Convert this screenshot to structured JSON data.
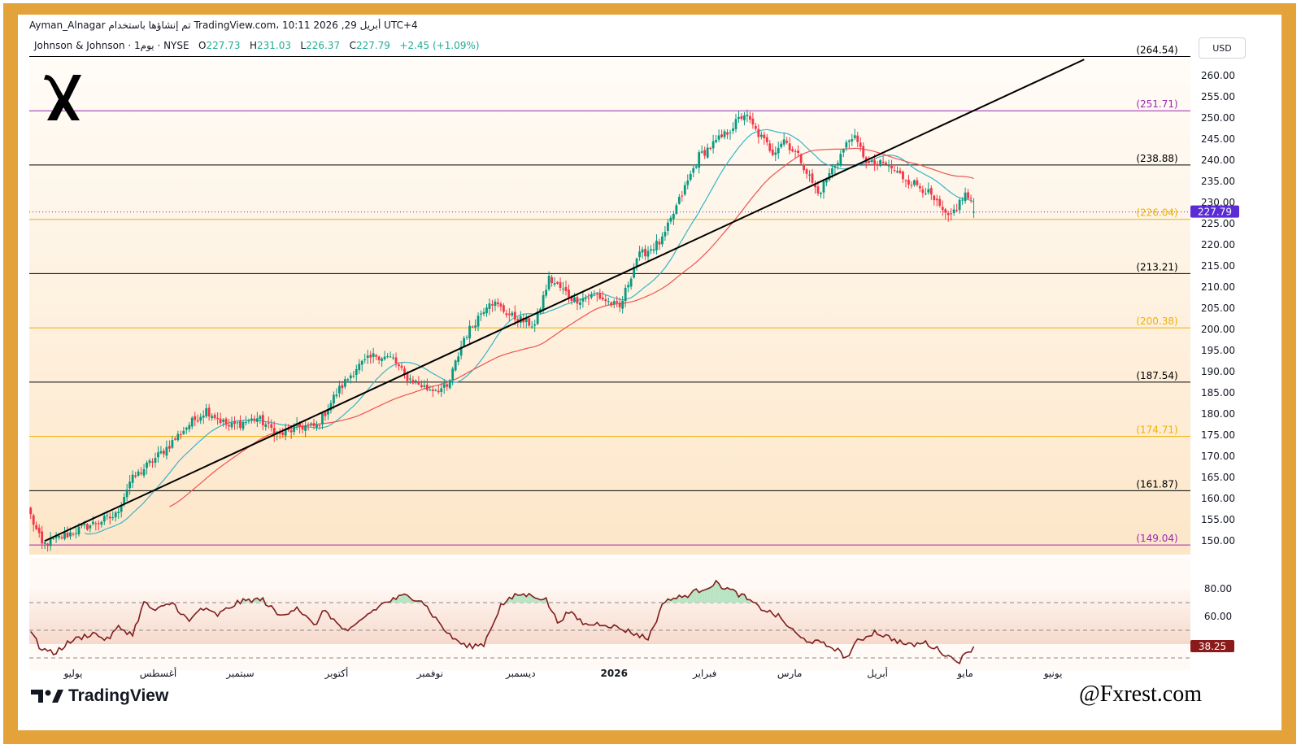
{
  "header": {
    "text": "Ayman_Alnagar تم إنشاؤها باستخدام TradingView.com، 10:11 2026 ,29 أبريل UTC+4"
  },
  "legend": {
    "symbol": "Johnson & Johnson · 1يوم · NYSE",
    "open_label": "O",
    "open": "227.73",
    "high_label": "H",
    "high": "231.03",
    "low_label": "L",
    "low": "226.37",
    "close_label": "C",
    "close": "227.79",
    "change": "+2.45 (+1.09%)"
  },
  "currency": "USD",
  "brand": {
    "name": "TradingView"
  },
  "watermark": "@Fxrest.com",
  "colors": {
    "up": "#089981",
    "down": "#f23645",
    "sma_fast": "#35b6c9",
    "sma_slow": "#ef5350",
    "trendline": "#000000",
    "fib_black": "#000000",
    "fib_orange": "#f0b000",
    "fib_purple": "#9c27b0",
    "rsi_line": "#7e1e1e",
    "last_price_bg": "#5b2bd6",
    "rsi_last_bg": "#8b1a1a"
  },
  "chart_data": {
    "type": "candlestick",
    "price_axis": {
      "ticks": [
        "260.00",
        "255.00",
        "250.00",
        "245.00",
        "240.00",
        "235.00",
        "230.00",
        "225.00",
        "220.00",
        "215.00",
        "210.00",
        "205.00",
        "200.00",
        "195.00",
        "190.00",
        "185.00",
        "180.00",
        "175.00",
        "170.00",
        "165.00",
        "160.00",
        "155.00",
        "150.00"
      ]
    },
    "time_axis": {
      "labels": [
        "يوليو",
        "أغسطس",
        "سبتمبر",
        "أكتوبر",
        "نوفمبر",
        "ديسمبر",
        "2026",
        "فبراير",
        "مارس",
        "أبريل",
        "مايو",
        "يونيو"
      ]
    },
    "fib_levels": [
      {
        "label": "(264.54)",
        "value": 264.54,
        "color": "black"
      },
      {
        "label": "(251.71)",
        "value": 251.71,
        "color": "purple"
      },
      {
        "label": "(238.88)",
        "value": 238.88,
        "color": "black"
      },
      {
        "label": "(226.04)",
        "value": 226.04,
        "color": "orange"
      },
      {
        "label": "(213.21)",
        "value": 213.21,
        "color": "black"
      },
      {
        "label": "(200.38)",
        "value": 200.38,
        "color": "orange"
      },
      {
        "label": "(187.54)",
        "value": 187.54,
        "color": "black"
      },
      {
        "label": "(174.71)",
        "value": 174.71,
        "color": "orange"
      },
      {
        "label": "(161.87)",
        "value": 161.87,
        "color": "black"
      },
      {
        "label": "(149.04)",
        "value": 149.04,
        "color": "purple"
      }
    ],
    "last_price": {
      "label": "227.79",
      "value": 227.79
    },
    "trendline": {
      "from": {
        "bar": 5,
        "price": 150.0
      },
      "to": {
        "bar": 250,
        "price": 226.0
      }
    },
    "waypoints": [
      [
        0,
        156
      ],
      [
        4,
        149
      ],
      [
        18,
        153
      ],
      [
        30,
        156
      ],
      [
        35,
        164
      ],
      [
        48,
        172
      ],
      [
        55,
        177
      ],
      [
        62,
        181
      ],
      [
        70,
        177
      ],
      [
        80,
        179
      ],
      [
        88,
        175
      ],
      [
        95,
        177
      ],
      [
        101,
        177
      ],
      [
        108,
        185
      ],
      [
        115,
        191
      ],
      [
        122,
        194
      ],
      [
        128,
        193
      ],
      [
        132,
        189
      ],
      [
        140,
        186
      ],
      [
        147,
        186
      ],
      [
        153,
        198
      ],
      [
        162,
        207
      ],
      [
        170,
        203
      ],
      [
        178,
        201
      ],
      [
        183,
        212
      ],
      [
        192,
        207
      ],
      [
        200,
        208
      ],
      [
        208,
        205
      ],
      [
        214,
        217
      ],
      [
        223,
        221
      ],
      [
        228,
        229
      ],
      [
        236,
        241
      ],
      [
        245,
        246
      ],
      [
        252,
        251
      ],
      [
        256,
        247
      ],
      [
        262,
        242
      ],
      [
        266,
        245
      ],
      [
        272,
        240
      ],
      [
        278,
        232
      ],
      [
        284,
        239
      ],
      [
        290,
        246
      ],
      [
        296,
        239
      ],
      [
        302,
        239
      ],
      [
        308,
        236
      ],
      [
        316,
        233
      ],
      [
        324,
        226
      ],
      [
        330,
        232
      ],
      [
        333,
        229
      ]
    ],
    "sma_periods": [
      20,
      50
    ],
    "rsi": {
      "ticks": [
        "80.00",
        "60.00"
      ],
      "levels": [
        70,
        50,
        30
      ],
      "last_label": "38.25",
      "last": 38.25,
      "waypoints": [
        [
          0,
          50
        ],
        [
          3,
          38
        ],
        [
          8,
          33
        ],
        [
          14,
          42
        ],
        [
          22,
          48
        ],
        [
          27,
          43
        ],
        [
          31,
          52
        ],
        [
          36,
          47
        ],
        [
          40,
          70
        ],
        [
          44,
          64
        ],
        [
          50,
          70
        ],
        [
          56,
          56
        ],
        [
          60,
          66
        ],
        [
          66,
          61
        ],
        [
          73,
          70
        ],
        [
          78,
          72
        ],
        [
          82,
          72
        ],
        [
          88,
          60
        ],
        [
          94,
          67
        ],
        [
          100,
          53
        ],
        [
          104,
          65
        ],
        [
          108,
          55
        ],
        [
          112,
          48
        ],
        [
          118,
          60
        ],
        [
          125,
          70
        ],
        [
          132,
          75
        ],
        [
          138,
          72
        ],
        [
          142,
          61
        ],
        [
          148,
          46
        ],
        [
          154,
          38
        ],
        [
          160,
          40
        ],
        [
          166,
          68
        ],
        [
          172,
          76
        ],
        [
          178,
          75
        ],
        [
          182,
          72
        ],
        [
          186,
          56
        ],
        [
          190,
          63
        ],
        [
          196,
          54
        ],
        [
          202,
          55
        ],
        [
          210,
          50
        ],
        [
          218,
          44
        ],
        [
          224,
          72
        ],
        [
          230,
          74
        ],
        [
          236,
          79
        ],
        [
          242,
          84
        ],
        [
          246,
          80
        ],
        [
          252,
          74
        ],
        [
          256,
          68
        ],
        [
          264,
          60
        ],
        [
          272,
          44
        ],
        [
          278,
          41
        ],
        [
          284,
          37
        ],
        [
          288,
          30
        ],
        [
          292,
          42
        ],
        [
          298,
          49
        ],
        [
          304,
          44
        ],
        [
          310,
          39
        ],
        [
          316,
          41
        ],
        [
          322,
          34
        ],
        [
          325,
          30
        ],
        [
          328,
          28
        ],
        [
          333,
          38.25
        ]
      ]
    }
  }
}
